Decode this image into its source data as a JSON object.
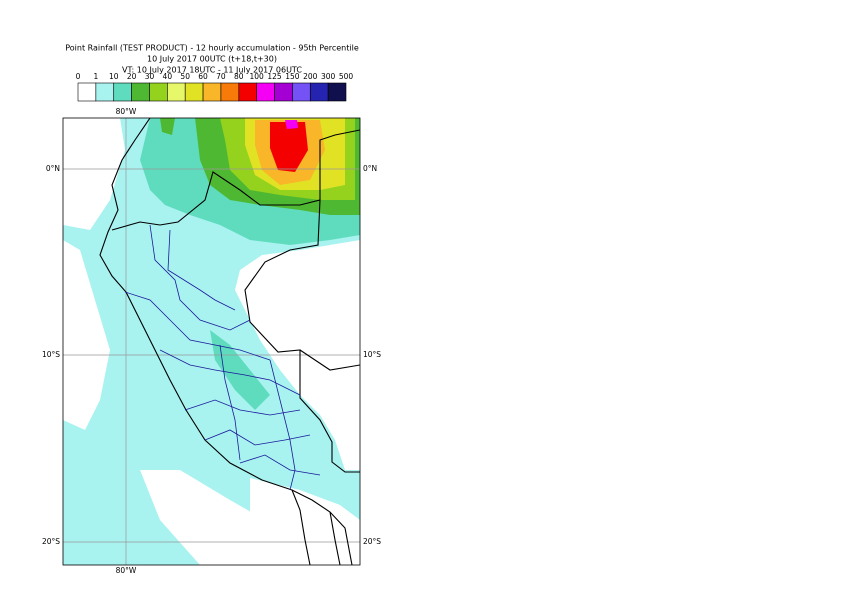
{
  "header": {
    "title": "Point Rainfall (TEST PRODUCT) - 12 hourly accumulation - 95th Percentile",
    "run": "10 July 2017 00UTC (t+18,t+30)",
    "validity": "VT: 10 July 2017 18UTC - 11 July 2017 06UTC"
  },
  "legend": {
    "labels": [
      0,
      1,
      10,
      20,
      30,
      40,
      50,
      60,
      70,
      80,
      100,
      125,
      150,
      200,
      300,
      500
    ],
    "colors": [
      "#ffffff",
      "#a8f2f0",
      "#5fdcbe",
      "#4fb832",
      "#94d21e",
      "#e6f86a",
      "#e2e224",
      "#f8b628",
      "#f87a08",
      "#f40000",
      "#f400f4",
      "#a400d4",
      "#7452f6",
      "#2424b0",
      "#10104e"
    ]
  },
  "map": {
    "lon_labels": [
      "80°W"
    ],
    "lat_labels": [
      "0°N",
      "10°S",
      "20°S"
    ]
  }
}
